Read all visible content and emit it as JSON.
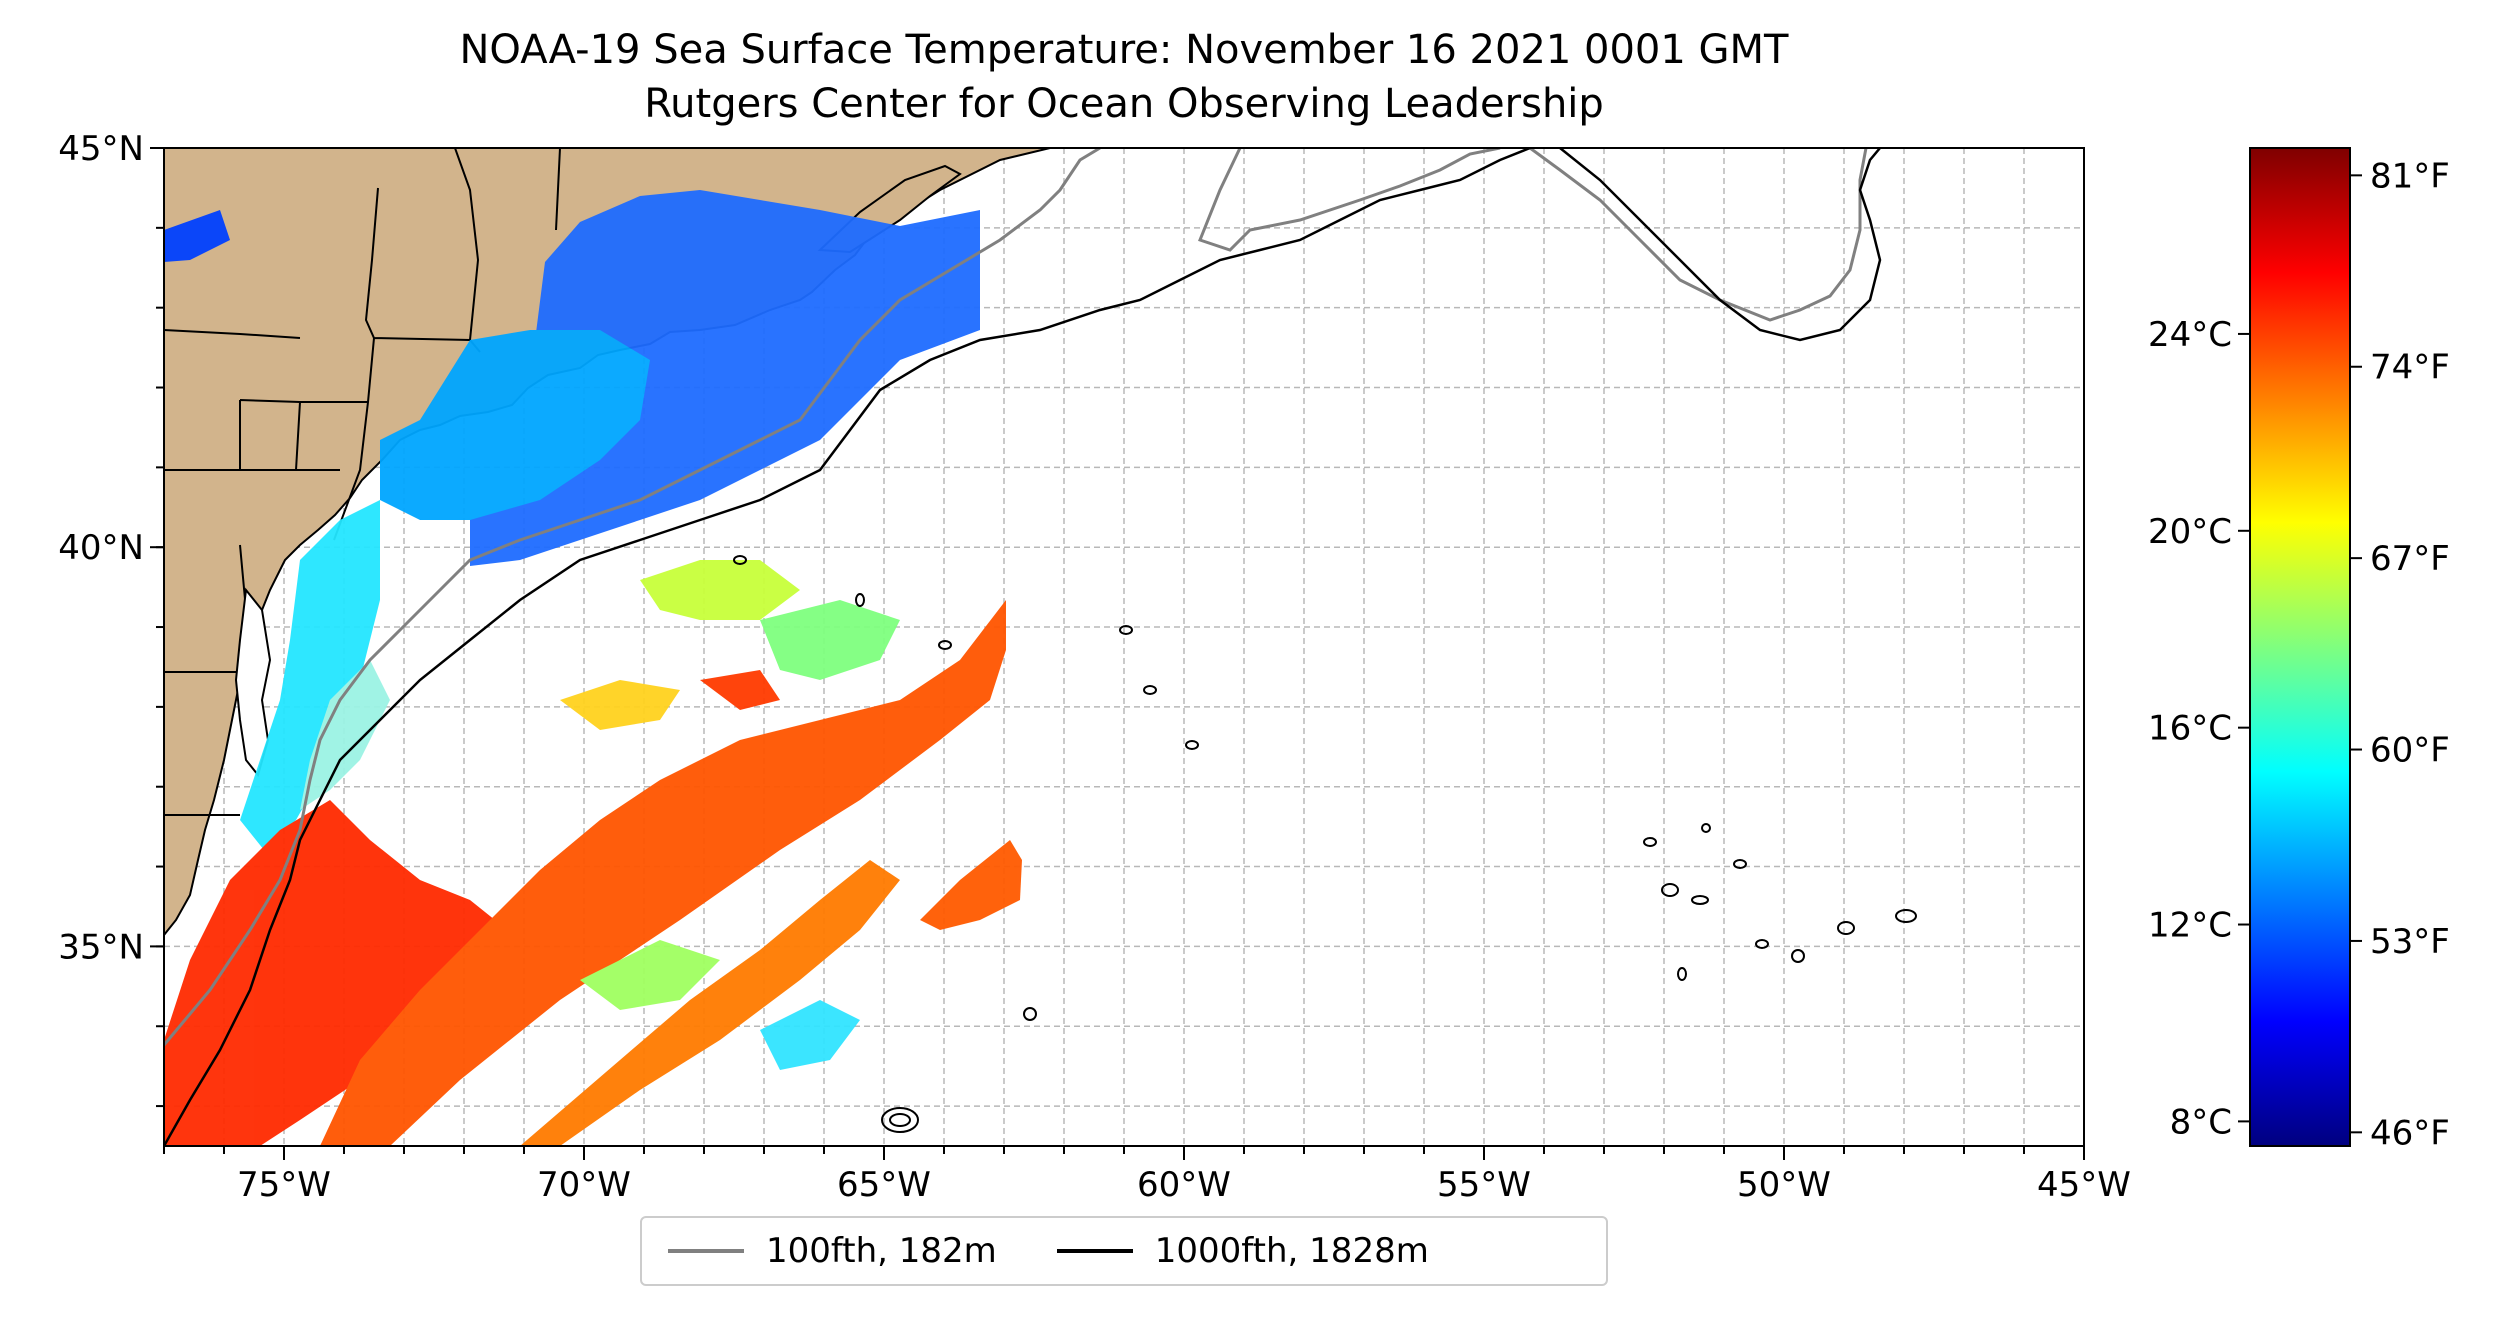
{
  "title": {
    "line1": "NOAA-19 Sea Surface Temperature: November 16 2021 0001 GMT",
    "line2": "Rutgers Center for Ocean Observing Leadership"
  },
  "map": {
    "extent": {
      "lon_min": -77,
      "lon_max": -45,
      "lat_min": 32.5,
      "lat_max": 45
    },
    "land_color": "#d2b48c",
    "gridlines": true,
    "lon_ticks": [
      {
        "value": -75,
        "label": "75°W"
      },
      {
        "value": -70,
        "label": "70°W"
      },
      {
        "value": -65,
        "label": "65°W"
      },
      {
        "value": -60,
        "label": "60°W"
      },
      {
        "value": -55,
        "label": "55°W"
      },
      {
        "value": -50,
        "label": "50°W"
      },
      {
        "value": -45,
        "label": "45°W"
      }
    ],
    "lat_ticks": [
      {
        "value": 45,
        "label": "45°N"
      },
      {
        "value": 40,
        "label": "40°N"
      },
      {
        "value": 35,
        "label": "35°N"
      }
    ]
  },
  "colorbar": {
    "colormap": "jet",
    "range_f": [
      45.5,
      82
    ],
    "colors": [
      "#00007f",
      "#0000ff",
      "#007fff",
      "#00ffff",
      "#7fff7f",
      "#ffff00",
      "#ff7f00",
      "#ff0000",
      "#7f0000"
    ],
    "celsius_ticks": [
      {
        "value_c": 24,
        "label": "24°C"
      },
      {
        "value_c": 20,
        "label": "20°C"
      },
      {
        "value_c": 16,
        "label": "16°C"
      },
      {
        "value_c": 12,
        "label": "12°C"
      },
      {
        "value_c": 8,
        "label": "8°C"
      }
    ],
    "fahrenheit_ticks": [
      {
        "value_f": 81,
        "label": "81°F"
      },
      {
        "value_f": 74,
        "label": "74°F"
      },
      {
        "value_f": 67,
        "label": "67°F"
      },
      {
        "value_f": 60,
        "label": "60°F"
      },
      {
        "value_f": 53,
        "label": "53°F"
      },
      {
        "value_f": 46,
        "label": "46°F"
      }
    ]
  },
  "legend": {
    "items": [
      {
        "label": "100fth, 182m",
        "color": "#808080"
      },
      {
        "label": "1000fth, 1828m",
        "color": "#000000"
      }
    ]
  }
}
